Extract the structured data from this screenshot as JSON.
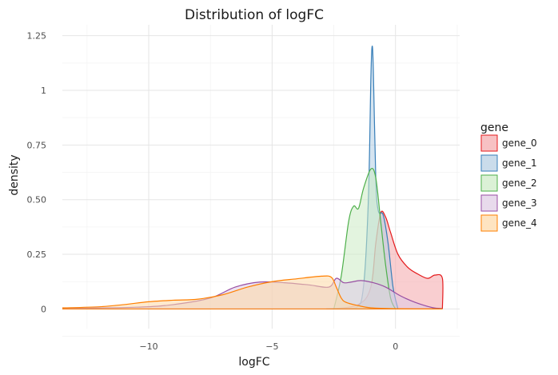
{
  "chart_data": {
    "type": "area",
    "title": "Distribution of logFC",
    "xlabel": "logFC",
    "ylabel": "density",
    "xlim": [
      -13.5,
      2.6
    ],
    "ylim": [
      -0.09,
      1.3
    ],
    "x_ticks": [
      -10,
      -5,
      0
    ],
    "x_tick_labels": [
      "−10",
      "−5",
      "0"
    ],
    "y_ticks": [
      0,
      0.25,
      0.5,
      0.75,
      1,
      1.25
    ],
    "y_tick_labels": [
      "0",
      "0.25",
      "0.50",
      "0.75",
      "1",
      "1.25"
    ],
    "grid": true,
    "legend": {
      "title": "gene",
      "position": "right"
    },
    "series": [
      {
        "name": "gene_0",
        "color": "#e41a1c",
        "fill": "#f4a6a9",
        "points": [
          [
            -2.6,
            0
          ],
          [
            -1.5,
            0.02
          ],
          [
            -1.0,
            0.1
          ],
          [
            -0.8,
            0.3
          ],
          [
            -0.6,
            0.44
          ],
          [
            -0.4,
            0.42
          ],
          [
            -0.2,
            0.35
          ],
          [
            0.1,
            0.25
          ],
          [
            0.5,
            0.19
          ],
          [
            0.9,
            0.16
          ],
          [
            1.3,
            0.14
          ],
          [
            1.6,
            0.155
          ],
          [
            1.9,
            0.14
          ],
          [
            1.9,
            0
          ]
        ]
      },
      {
        "name": "gene_1",
        "color": "#377eb8",
        "fill": "#b3cde3",
        "points": [
          [
            -2.8,
            0
          ],
          [
            -2.4,
            0.002
          ],
          [
            -1.6,
            0.005
          ],
          [
            -1.3,
            0.1
          ],
          [
            -1.1,
            0.5
          ],
          [
            -1.0,
            1.05
          ],
          [
            -0.95,
            1.2
          ],
          [
            -0.9,
            1.1
          ],
          [
            -0.8,
            0.6
          ],
          [
            -0.7,
            0.45
          ],
          [
            -0.5,
            0.43
          ],
          [
            -0.3,
            0.3
          ],
          [
            -0.1,
            0.1
          ],
          [
            0.1,
            0
          ]
        ]
      },
      {
        "name": "gene_2",
        "color": "#4daf4a",
        "fill": "#ccebc5",
        "points": [
          [
            -2.5,
            0
          ],
          [
            -2.2,
            0.15
          ],
          [
            -1.9,
            0.4
          ],
          [
            -1.7,
            0.47
          ],
          [
            -1.5,
            0.46
          ],
          [
            -1.3,
            0.55
          ],
          [
            -1.0,
            0.64
          ],
          [
            -0.8,
            0.6
          ],
          [
            -0.6,
            0.4
          ],
          [
            -0.4,
            0.2
          ],
          [
            -0.2,
            0.05
          ],
          [
            0.0,
            0
          ]
        ]
      },
      {
        "name": "gene_3",
        "color": "#984ea3",
        "fill": "#decbe4",
        "points": [
          [
            -13.5,
            0.002
          ],
          [
            -10.5,
            0.008
          ],
          [
            -9.0,
            0.02
          ],
          [
            -7.5,
            0.05
          ],
          [
            -6.5,
            0.1
          ],
          [
            -5.5,
            0.123
          ],
          [
            -4.5,
            0.12
          ],
          [
            -3.5,
            0.11
          ],
          [
            -2.7,
            0.1
          ],
          [
            -2.4,
            0.14
          ],
          [
            -2.1,
            0.12
          ],
          [
            -1.8,
            0.123
          ],
          [
            -1.4,
            0.13
          ],
          [
            -0.9,
            0.12
          ],
          [
            -0.4,
            0.1
          ],
          [
            0.2,
            0.06
          ],
          [
            0.8,
            0.03
          ],
          [
            1.5,
            0.006
          ],
          [
            1.9,
            0.002
          ]
        ]
      },
      {
        "name": "gene_4",
        "color": "#ff7f00",
        "fill": "#fed9a6",
        "points": [
          [
            -13.5,
            0.005
          ],
          [
            -12.0,
            0.01
          ],
          [
            -11.0,
            0.02
          ],
          [
            -10.0,
            0.033
          ],
          [
            -9.0,
            0.04
          ],
          [
            -8.0,
            0.045
          ],
          [
            -7.0,
            0.065
          ],
          [
            -6.0,
            0.1
          ],
          [
            -5.0,
            0.125
          ],
          [
            -4.0,
            0.138
          ],
          [
            -3.0,
            0.15
          ],
          [
            -2.6,
            0.145
          ],
          [
            -2.4,
            0.1
          ],
          [
            -2.2,
            0.05
          ],
          [
            -2.0,
            0.03
          ],
          [
            -1.5,
            0.015
          ],
          [
            -1.0,
            0.005
          ],
          [
            0.0,
            0.001
          ],
          [
            1.9,
            0
          ]
        ]
      }
    ]
  }
}
